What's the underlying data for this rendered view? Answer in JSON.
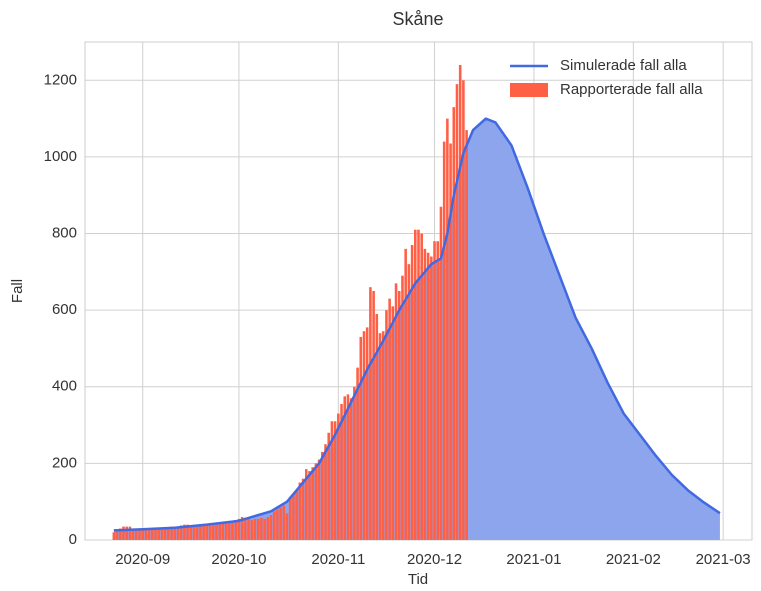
{
  "chart_data": {
    "type": "line",
    "title": "Skåne",
    "xlabel": "Tid",
    "ylabel": "Fall",
    "xlim": [
      -18,
      190
    ],
    "ylim": [
      0,
      1300
    ],
    "xticks": [
      {
        "value": 0,
        "label": "2020-09"
      },
      {
        "value": 30,
        "label": "2020-10"
      },
      {
        "value": 61,
        "label": "2020-11"
      },
      {
        "value": 91,
        "label": "2020-12"
      },
      {
        "value": 122,
        "label": "2021-01"
      },
      {
        "value": 153,
        "label": "2021-02"
      },
      {
        "value": 181,
        "label": "2021-03"
      }
    ],
    "yticks": [
      0,
      200,
      400,
      600,
      800,
      1000,
      1200
    ],
    "grid": true,
    "legend": "upper right",
    "series": [
      {
        "name": "Simulerade fall alla",
        "type": "line",
        "color": "#4169e1",
        "fill_color": "#8da5ec",
        "x": [
          -9,
          0,
          10,
          20,
          30,
          40,
          45,
          50,
          55,
          60,
          65,
          70,
          75,
          80,
          85,
          90,
          93,
          95,
          97,
          100,
          103,
          107,
          110,
          115,
          120,
          125,
          130,
          135,
          140,
          145,
          150,
          155,
          160,
          165,
          170,
          175,
          180
        ],
        "values": [
          25,
          28,
          32,
          40,
          50,
          75,
          100,
          150,
          200,
          275,
          360,
          445,
          520,
          600,
          670,
          720,
          735,
          800,
          900,
          1010,
          1070,
          1100,
          1090,
          1030,
          920,
          800,
          690,
          580,
          500,
          410,
          330,
          275,
          220,
          170,
          130,
          98,
          70
        ]
      },
      {
        "name": "Rapporterade fall alla",
        "type": "bar",
        "color": "#ff5f45",
        "x": [
          -9,
          -8,
          -7,
          -6,
          -5,
          -4,
          -3,
          -2,
          -1,
          0,
          1,
          2,
          3,
          4,
          5,
          6,
          7,
          8,
          9,
          10,
          11,
          12,
          13,
          14,
          15,
          16,
          17,
          18,
          19,
          20,
          21,
          22,
          23,
          24,
          25,
          26,
          27,
          28,
          29,
          30,
          31,
          32,
          33,
          34,
          35,
          36,
          37,
          38,
          39,
          40,
          41,
          42,
          43,
          44,
          45,
          46,
          47,
          48,
          49,
          50,
          51,
          52,
          53,
          54,
          55,
          56,
          57,
          58,
          59,
          60,
          61,
          62,
          63,
          64,
          65,
          66,
          67,
          68,
          69,
          70,
          71,
          72,
          73,
          74,
          75,
          76,
          77,
          78,
          79,
          80,
          81,
          82,
          83,
          84,
          85,
          86,
          87,
          88,
          89,
          90,
          91,
          92,
          93,
          94,
          95,
          96,
          97,
          98,
          99,
          100,
          101
        ],
        "values": [
          20,
          25,
          30,
          35,
          35,
          35,
          25,
          25,
          28,
          28,
          28,
          27,
          28,
          27,
          28,
          30,
          30,
          32,
          35,
          35,
          35,
          38,
          40,
          40,
          35,
          38,
          35,
          38,
          40,
          40,
          38,
          42,
          45,
          45,
          42,
          45,
          48,
          50,
          52,
          55,
          60,
          58,
          55,
          52,
          55,
          55,
          58,
          55,
          60,
          65,
          75,
          80,
          85,
          90,
          70,
          110,
          120,
          130,
          150,
          160,
          185,
          180,
          190,
          200,
          210,
          230,
          250,
          280,
          310,
          310,
          330,
          355,
          375,
          380,
          370,
          400,
          450,
          530,
          545,
          555,
          660,
          650,
          590,
          540,
          545,
          600,
          630,
          610,
          670,
          650,
          690,
          760,
          720,
          770,
          810,
          810,
          800,
          760,
          750,
          740,
          780,
          780,
          870,
          1040,
          1100,
          1035,
          1130,
          1190,
          1240,
          1200,
          1070
        ]
      }
    ]
  }
}
